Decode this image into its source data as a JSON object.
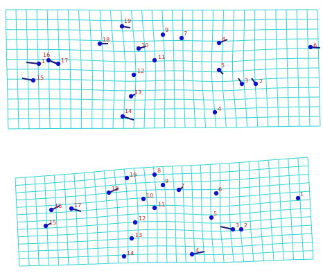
{
  "colors": {
    "grid": "#2fd3d3",
    "point": "#1010c8",
    "vector": "#1a1a7a",
    "label": "#d02020"
  },
  "panels": [
    {
      "name": "top-panel",
      "landmarks": [
        {
          "id": "1",
          "label": "1"
        },
        {
          "id": "2",
          "label": "2"
        },
        {
          "id": "3",
          "label": "3"
        },
        {
          "id": "4",
          "label": "4"
        },
        {
          "id": "5",
          "label": "5"
        },
        {
          "id": "6",
          "label": "6"
        },
        {
          "id": "7",
          "label": "7"
        },
        {
          "id": "8",
          "label": "8"
        },
        {
          "id": "9",
          "label": "9"
        },
        {
          "id": "10",
          "label": "10"
        },
        {
          "id": "11",
          "label": "11"
        },
        {
          "id": "12",
          "label": "12"
        },
        {
          "id": "13",
          "label": "13"
        },
        {
          "id": "14",
          "label": "14"
        },
        {
          "id": "15",
          "label": "15"
        },
        {
          "id": "16",
          "label": "16"
        },
        {
          "id": "17",
          "label": "17"
        },
        {
          "id": "18",
          "label": "18"
        },
        {
          "id": "19",
          "label": "19"
        }
      ]
    },
    {
      "name": "bottom-panel",
      "landmarks": [
        {
          "id": "1",
          "label": "1"
        },
        {
          "id": "2",
          "label": "2"
        },
        {
          "id": "3",
          "label": "3"
        },
        {
          "id": "4",
          "label": "4"
        },
        {
          "id": "5",
          "label": "5"
        },
        {
          "id": "6",
          "label": "6"
        },
        {
          "id": "7",
          "label": "7"
        },
        {
          "id": "8",
          "label": "8"
        },
        {
          "id": "9",
          "label": "9"
        },
        {
          "id": "10",
          "label": "10"
        },
        {
          "id": "11",
          "label": "11"
        },
        {
          "id": "12",
          "label": "12"
        },
        {
          "id": "13",
          "label": "13"
        },
        {
          "id": "14",
          "label": "14"
        },
        {
          "id": "15",
          "label": "15"
        },
        {
          "id": "16",
          "label": "16"
        },
        {
          "id": "17",
          "label": "17"
        },
        {
          "id": "18",
          "label": "18"
        },
        {
          "id": "19",
          "label": "19"
        }
      ]
    }
  ]
}
